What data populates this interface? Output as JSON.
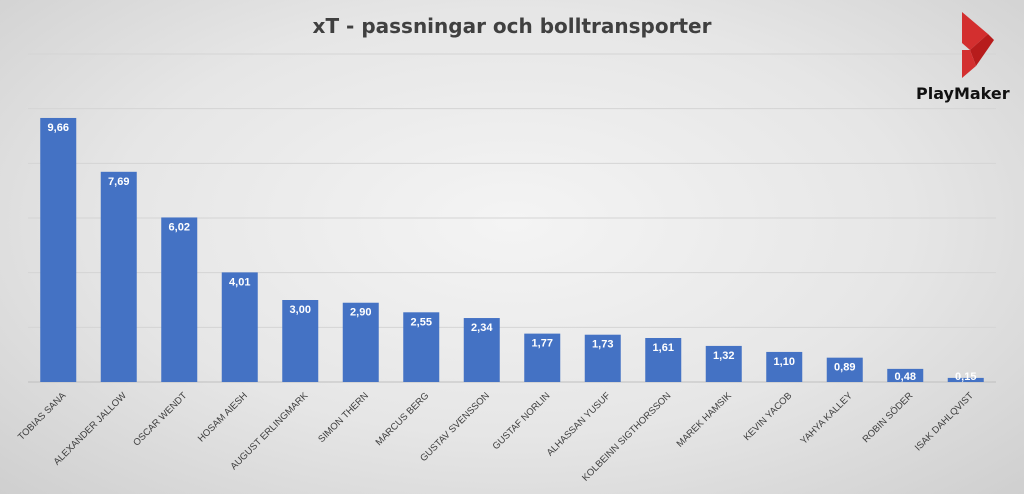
{
  "chart_data": {
    "type": "bar",
    "title": "xT - passningar och bolltransporter",
    "xlabel": "",
    "ylabel": "",
    "ylim": [
      0,
      12
    ],
    "grid": true,
    "legend": "none",
    "bar_color": "#4472c4",
    "categories": [
      "TOBIAS SANA",
      "ALEXANDER JALLOW",
      "OSCAR WENDT",
      "HOSAM AIESH",
      "AUGUST ERLINGMARK",
      "SIMON THERN",
      "MARCUS BERG",
      "GUSTAV SVENSSON",
      "GUSTAF NORLIN",
      "ALHASSAN YUSUF",
      "KOLBEINN SIGTHORSSON",
      "MAREK HAMSIK",
      "KEVIN YACOB",
      "YAHYA KALLEY",
      "ROBIN SÖDER",
      "ISAK DAHLQVIST"
    ],
    "values": [
      9.66,
      7.69,
      6.02,
      4.01,
      3.0,
      2.9,
      2.55,
      2.34,
      1.77,
      1.73,
      1.61,
      1.32,
      1.1,
      0.89,
      0.48,
      0.15
    ],
    "value_labels": [
      "9,66",
      "7,69",
      "6,02",
      "4,01",
      "3,00",
      "2,90",
      "2,55",
      "2,34",
      "1,77",
      "1,73",
      "1,61",
      "1,32",
      "1,10",
      "0,89",
      "0,48",
      "0,15"
    ]
  },
  "brand": {
    "logo_text": "PlayMaker",
    "logo_color": "#d32f2f"
  }
}
